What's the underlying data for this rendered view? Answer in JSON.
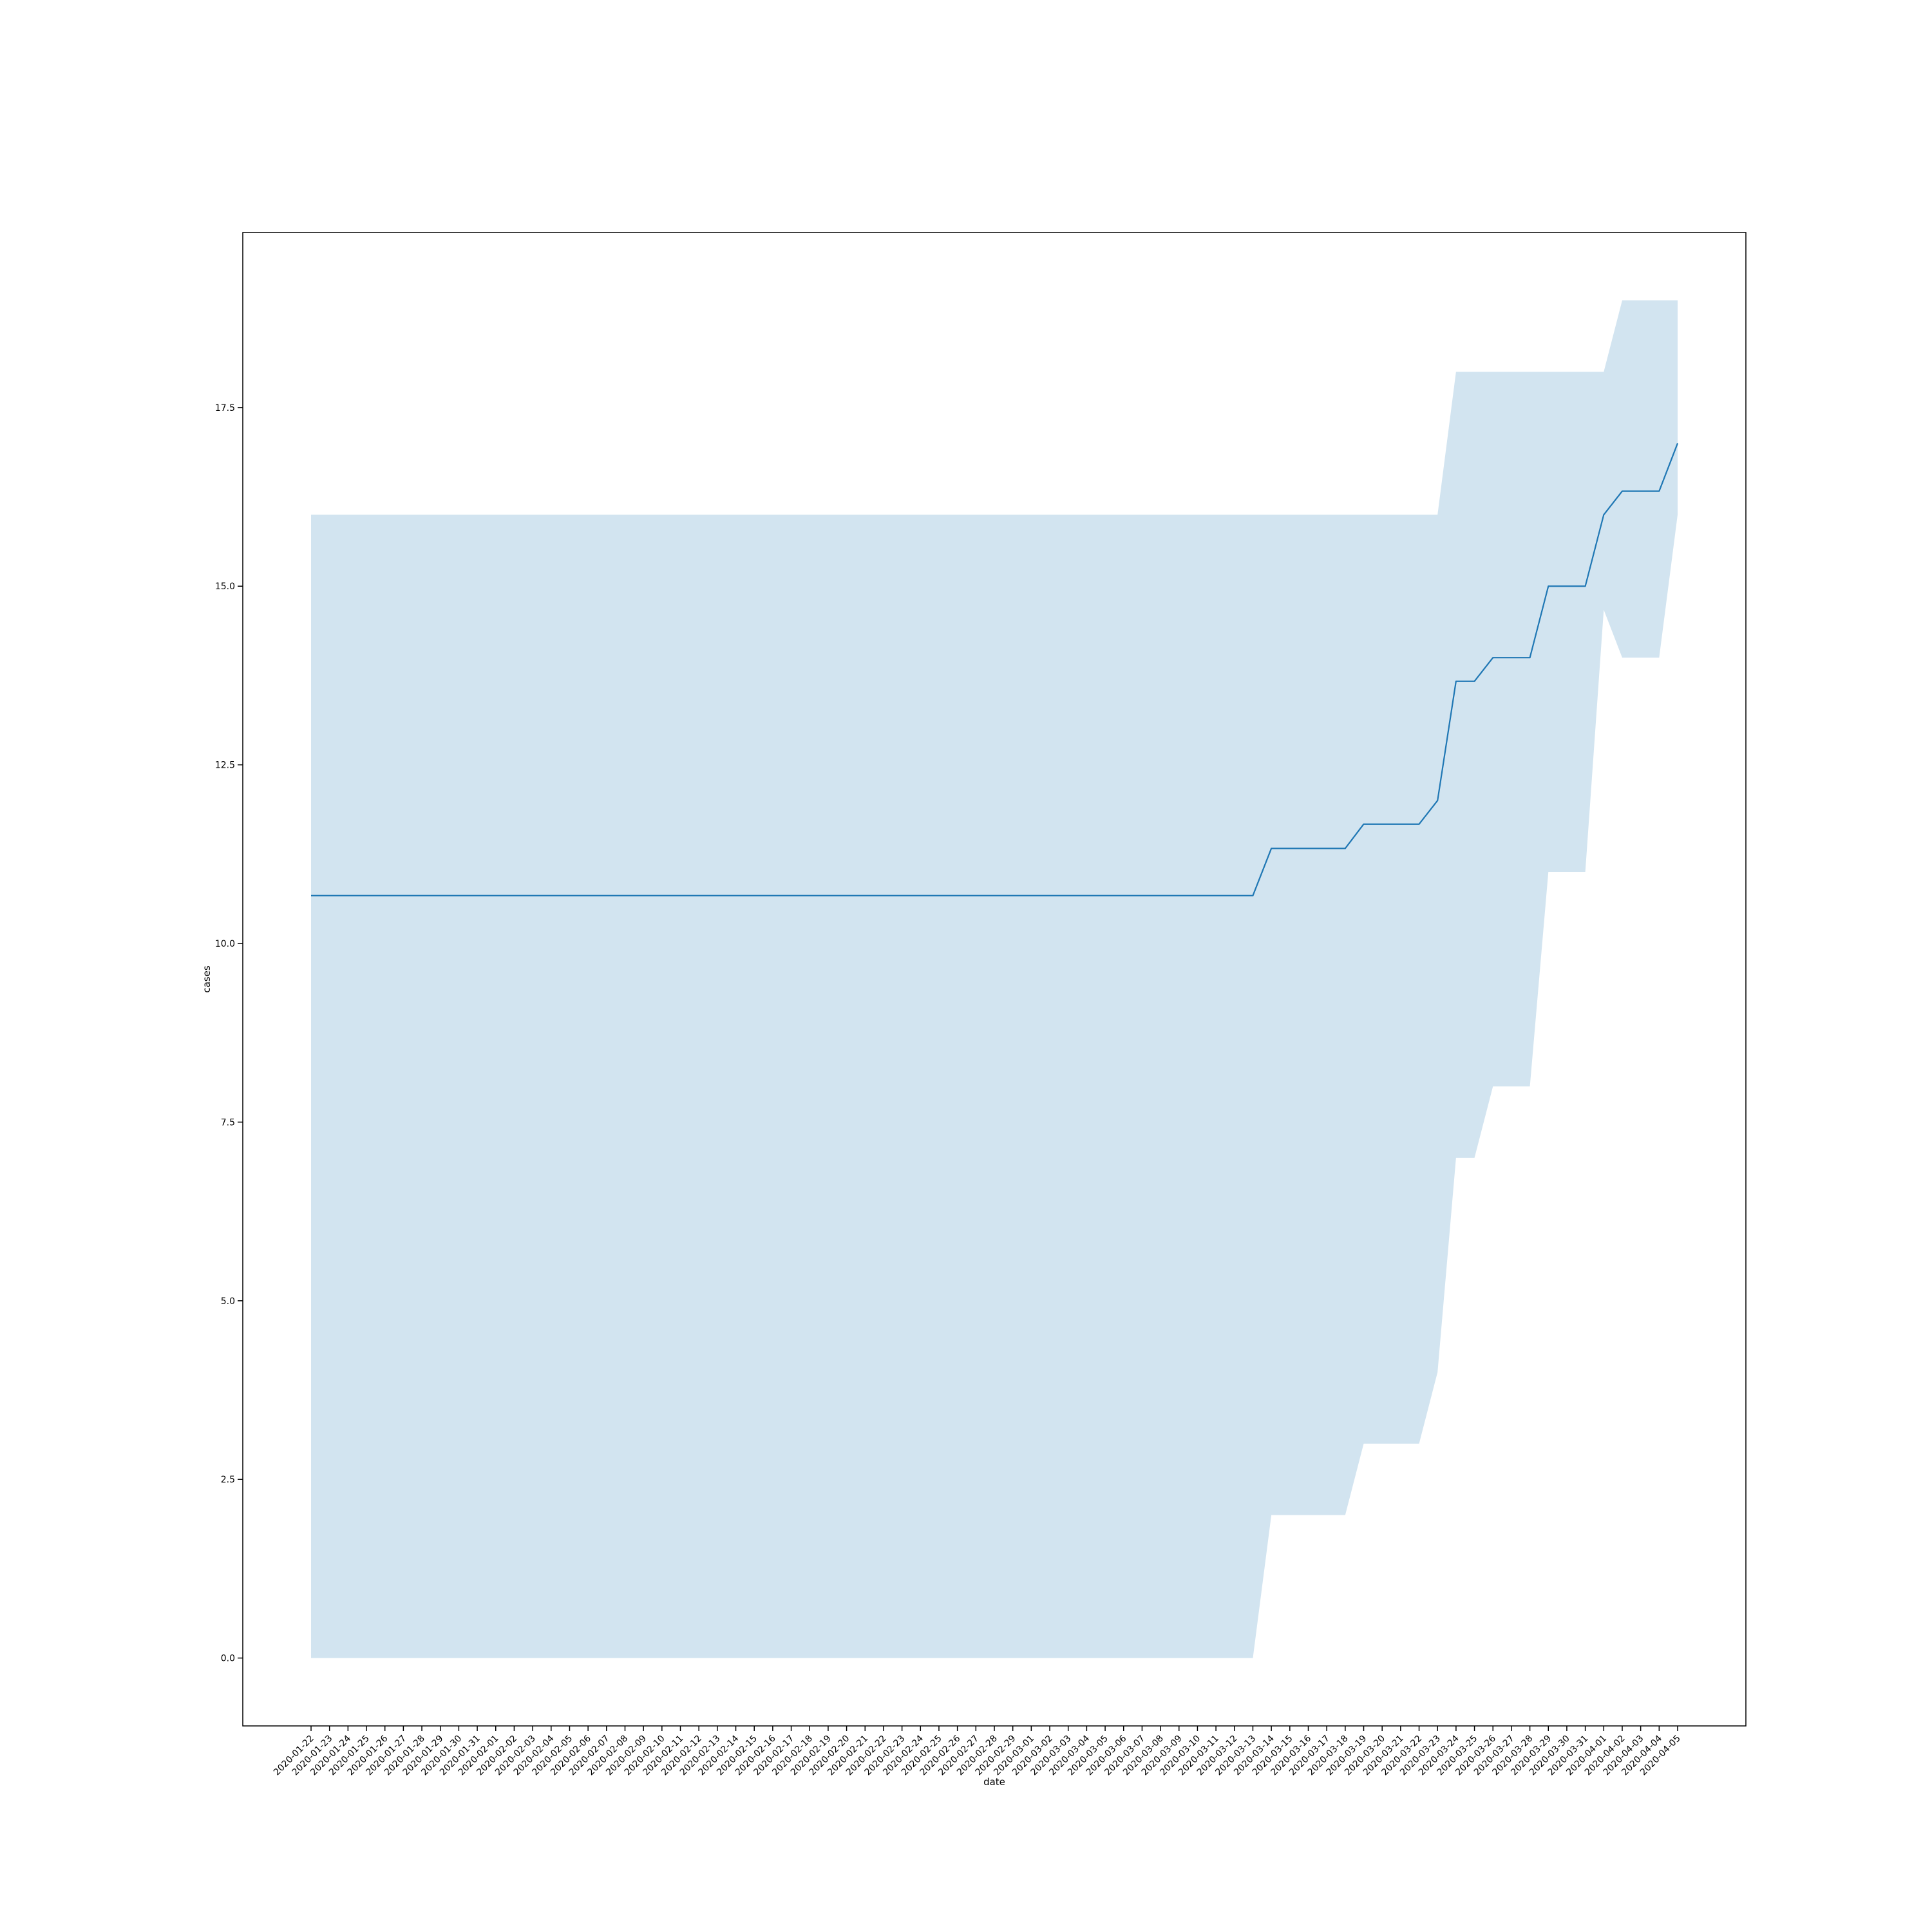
{
  "chart_data": {
    "type": "line",
    "xlabel": "date",
    "ylabel": "cases",
    "ylim": [
      -0.95,
      19.95
    ],
    "y_ticks": [
      "0.0",
      "2.5",
      "5.0",
      "7.5",
      "10.0",
      "12.5",
      "15.0",
      "17.5"
    ],
    "grid": false,
    "legend": "none",
    "colors": {
      "line": "#1f77b4",
      "band": "#1f77b4",
      "axes": "#000000"
    },
    "x": [
      "2020-01-22",
      "2020-01-23",
      "2020-01-24",
      "2020-01-25",
      "2020-01-26",
      "2020-01-27",
      "2020-01-28",
      "2020-01-29",
      "2020-01-30",
      "2020-01-31",
      "2020-02-01",
      "2020-02-02",
      "2020-02-03",
      "2020-02-04",
      "2020-02-05",
      "2020-02-06",
      "2020-02-07",
      "2020-02-08",
      "2020-02-09",
      "2020-02-10",
      "2020-02-11",
      "2020-02-12",
      "2020-02-13",
      "2020-02-14",
      "2020-02-15",
      "2020-02-16",
      "2020-02-17",
      "2020-02-18",
      "2020-02-19",
      "2020-02-20",
      "2020-02-21",
      "2020-02-22",
      "2020-02-23",
      "2020-02-24",
      "2020-02-25",
      "2020-02-26",
      "2020-02-27",
      "2020-02-28",
      "2020-02-29",
      "2020-03-01",
      "2020-03-02",
      "2020-03-03",
      "2020-03-04",
      "2020-03-05",
      "2020-03-06",
      "2020-03-07",
      "2020-03-08",
      "2020-03-09",
      "2020-03-10",
      "2020-03-11",
      "2020-03-12",
      "2020-03-13",
      "2020-03-14",
      "2020-03-15",
      "2020-03-16",
      "2020-03-17",
      "2020-03-18",
      "2020-03-19",
      "2020-03-20",
      "2020-03-21",
      "2020-03-22",
      "2020-03-23",
      "2020-03-24",
      "2020-03-25",
      "2020-03-26",
      "2020-03-27",
      "2020-03-28",
      "2020-03-29",
      "2020-03-30",
      "2020-03-31",
      "2020-04-01",
      "2020-04-02",
      "2020-04-03",
      "2020-04-04",
      "2020-04-05"
    ],
    "series": [
      {
        "values": [
          10.67,
          10.67,
          10.67,
          10.67,
          10.67,
          10.67,
          10.67,
          10.67,
          10.67,
          10.67,
          10.67,
          10.67,
          10.67,
          10.67,
          10.67,
          10.67,
          10.67,
          10.67,
          10.67,
          10.67,
          10.67,
          10.67,
          10.67,
          10.67,
          10.67,
          10.67,
          10.67,
          10.67,
          10.67,
          10.67,
          10.67,
          10.67,
          10.67,
          10.67,
          10.67,
          10.67,
          10.67,
          10.67,
          10.67,
          10.67,
          10.67,
          10.67,
          10.67,
          10.67,
          10.67,
          10.67,
          10.67,
          10.67,
          10.67,
          10.67,
          10.67,
          10.67,
          11.33,
          11.33,
          11.33,
          11.33,
          11.33,
          11.67,
          11.67,
          11.67,
          11.67,
          12.0,
          13.67,
          13.67,
          14.0,
          14.0,
          14.0,
          15.0,
          15.0,
          15.0,
          16.0,
          16.33,
          16.33,
          16.33,
          17.0
        ],
        "ci_lower": [
          0,
          0,
          0,
          0,
          0,
          0,
          0,
          0,
          0,
          0,
          0,
          0,
          0,
          0,
          0,
          0,
          0,
          0,
          0,
          0,
          0,
          0,
          0,
          0,
          0,
          0,
          0,
          0,
          0,
          0,
          0,
          0,
          0,
          0,
          0,
          0,
          0,
          0,
          0,
          0,
          0,
          0,
          0,
          0,
          0,
          0,
          0,
          0,
          0,
          0,
          0,
          0,
          2,
          2,
          2,
          2,
          2,
          3,
          3,
          3,
          3,
          4,
          7,
          7,
          8,
          8,
          8,
          11,
          11,
          11,
          14.67,
          14,
          14,
          14,
          16
        ],
        "ci_upper": [
          16,
          16,
          16,
          16,
          16,
          16,
          16,
          16,
          16,
          16,
          16,
          16,
          16,
          16,
          16,
          16,
          16,
          16,
          16,
          16,
          16,
          16,
          16,
          16,
          16,
          16,
          16,
          16,
          16,
          16,
          16,
          16,
          16,
          16,
          16,
          16,
          16,
          16,
          16,
          16,
          16,
          16,
          16,
          16,
          16,
          16,
          16,
          16,
          16,
          16,
          16,
          16,
          16,
          16,
          16,
          16,
          16,
          16,
          16,
          16,
          16,
          16,
          18,
          18,
          18,
          18,
          18,
          18,
          18,
          18,
          18,
          19,
          19,
          19,
          19
        ]
      }
    ]
  }
}
